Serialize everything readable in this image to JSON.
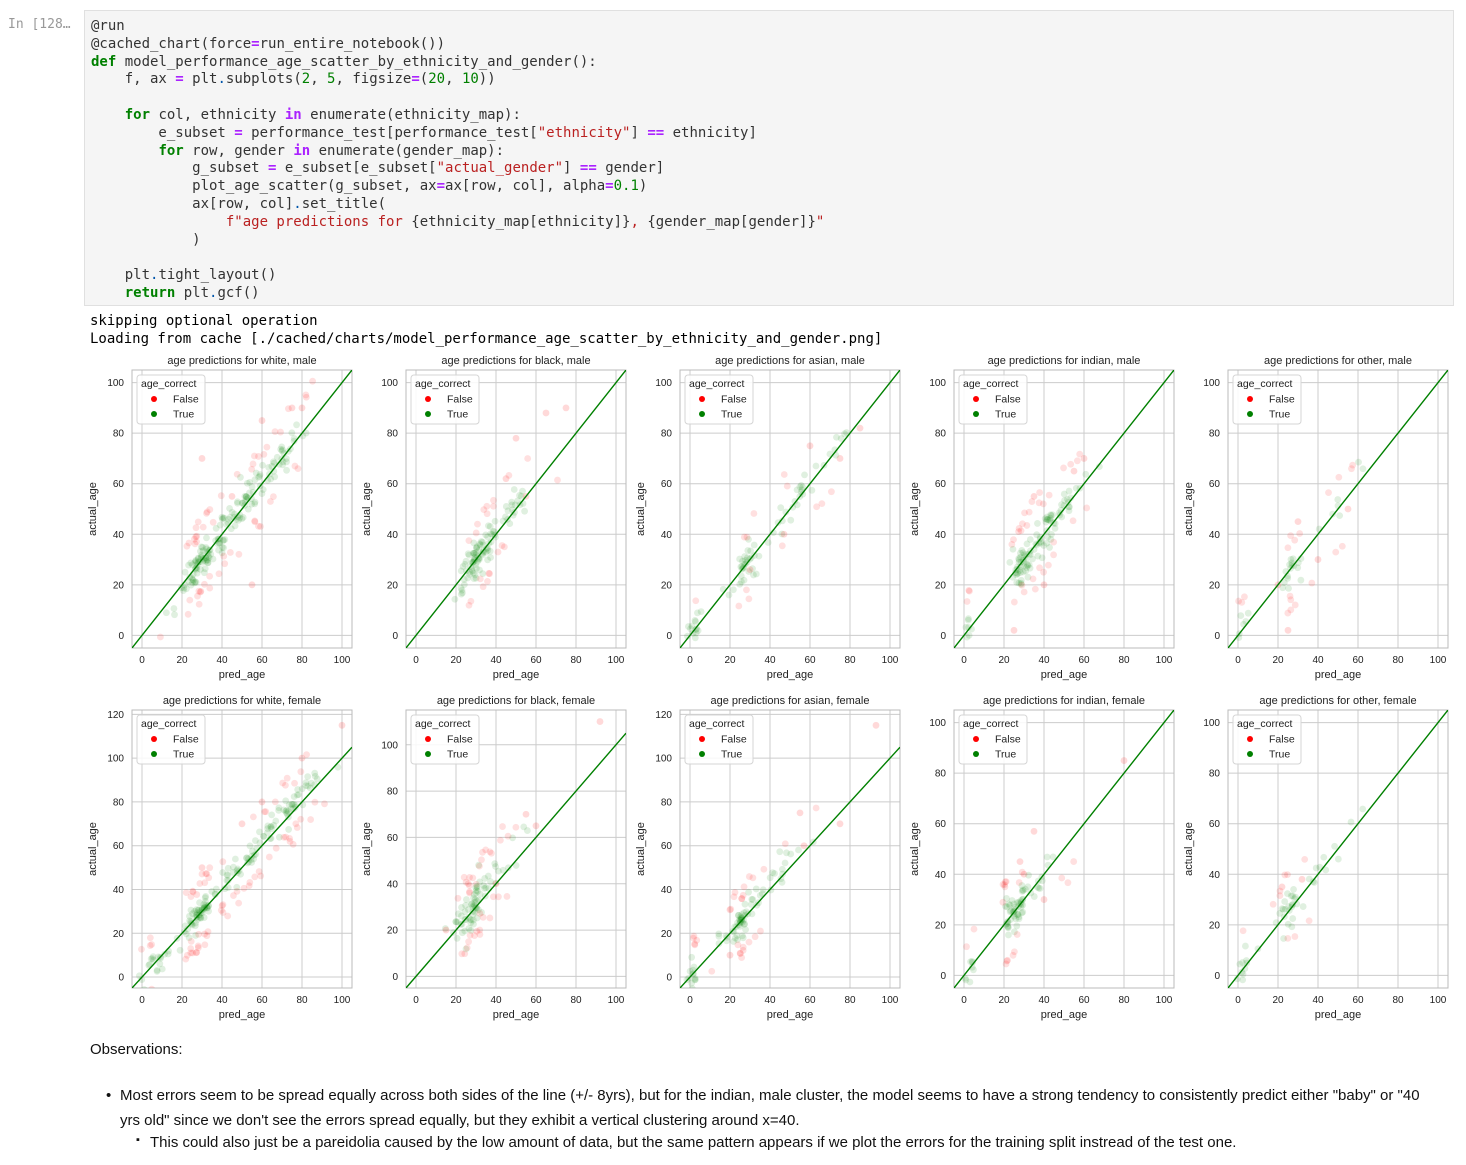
{
  "cell": {
    "prompt": "In [128…",
    "code_lines": [
      [
        [
          "",
          "@run"
        ]
      ],
      [
        [
          "",
          "@cached_chart(force"
        ],
        [
          "op",
          "="
        ],
        [
          "",
          "run_entire_notebook())"
        ]
      ],
      [
        [
          "k",
          "def"
        ],
        [
          "",
          " model_performance_age_scatter_by_ethnicity_and_gender():"
        ]
      ],
      [
        [
          "",
          "    f, ax "
        ],
        [
          "op",
          "="
        ],
        [
          "",
          " plt"
        ],
        [
          "p",
          "."
        ],
        [
          "",
          "subplots("
        ],
        [
          "n",
          "2"
        ],
        [
          "",
          ", "
        ],
        [
          "n",
          "5"
        ],
        [
          "",
          ", figsize"
        ],
        [
          "op",
          "="
        ],
        [
          "",
          "("
        ],
        [
          "n",
          "20"
        ],
        [
          "",
          ", "
        ],
        [
          "n",
          "10"
        ],
        [
          "",
          "))"
        ]
      ],
      [
        [
          "",
          ""
        ]
      ],
      [
        [
          "",
          "    "
        ],
        [
          "k",
          "for"
        ],
        [
          "",
          " col, ethnicity "
        ],
        [
          "op",
          "in"
        ],
        [
          "",
          " enumerate(ethnicity_map):"
        ]
      ],
      [
        [
          "",
          "        e_subset "
        ],
        [
          "op",
          "="
        ],
        [
          "",
          " performance_test[performance_test["
        ],
        [
          "s",
          "\"ethnicity\""
        ],
        [
          "",
          "] "
        ],
        [
          "op",
          "=="
        ],
        [
          "",
          " ethnicity]"
        ]
      ],
      [
        [
          "",
          "        "
        ],
        [
          "k",
          "for"
        ],
        [
          "",
          " row, gender "
        ],
        [
          "op",
          "in"
        ],
        [
          "",
          " enumerate(gender_map):"
        ]
      ],
      [
        [
          "",
          "            g_subset "
        ],
        [
          "op",
          "="
        ],
        [
          "",
          " e_subset[e_subset["
        ],
        [
          "s",
          "\"actual_gender\""
        ],
        [
          "",
          "] "
        ],
        [
          "op",
          "=="
        ],
        [
          "",
          " gender]"
        ]
      ],
      [
        [
          "",
          "            plot_age_scatter(g_subset, ax"
        ],
        [
          "op",
          "="
        ],
        [
          "",
          "ax[row, col], alpha"
        ],
        [
          "op",
          "="
        ],
        [
          "n",
          "0.1"
        ],
        [
          "",
          ")"
        ]
      ],
      [
        [
          "",
          "            ax[row, col]"
        ],
        [
          "p",
          "."
        ],
        [
          "",
          "set_title("
        ]
      ],
      [
        [
          "",
          "                "
        ],
        [
          "s",
          "f\"age predictions for "
        ],
        [
          "",
          "{ethnicity_map[ethnicity]}"
        ],
        [
          "s",
          ", "
        ],
        [
          "",
          "{gender_map[gender]}"
        ],
        [
          "s",
          "\""
        ]
      ],
      [
        [
          "",
          "            )"
        ]
      ],
      [
        [
          "",
          ""
        ]
      ],
      [
        [
          "",
          "    plt"
        ],
        [
          "p",
          "."
        ],
        [
          "",
          "tight_layout()"
        ]
      ],
      [
        [
          "",
          "    "
        ],
        [
          "k",
          "return"
        ],
        [
          "",
          " plt"
        ],
        [
          "p",
          "."
        ],
        [
          "",
          "gcf()"
        ]
      ]
    ]
  },
  "output": {
    "line1": "skipping optional operation",
    "line2": "Loading from cache [./cached/charts/model_performance_age_scatter_by_ethnicity_and_gender.png]"
  },
  "colors": {
    "correct": "#008000",
    "incorrect": "#ff0000",
    "grid": "#cccccc"
  },
  "chart_data": [
    {
      "type": "scatter",
      "title": "age predictions for white, male",
      "xlabel": "pred_age",
      "ylabel": "actual_age",
      "xlim": [
        -5,
        105
      ],
      "ylim": [
        -5,
        105
      ],
      "xticks": [
        0,
        20,
        40,
        60,
        80,
        100
      ],
      "yticks": [
        0,
        20,
        40,
        60,
        80,
        100
      ],
      "legend": {
        "title": "age_correct",
        "entries": [
          "False",
          "True"
        ],
        "placement": "top-left"
      },
      "clusters": [
        {
          "cx": 28,
          "cy": 28,
          "spread": 4,
          "n": 70
        },
        {
          "cx": 45,
          "cy": 45,
          "spread": 14,
          "n": 110
        },
        {
          "cx": 68,
          "cy": 68,
          "spread": 8,
          "n": 40
        }
      ],
      "error_fraction": 0.25,
      "extra_errors": [
        [
          60,
          85
        ],
        [
          75,
          90
        ],
        [
          80,
          90
        ],
        [
          30,
          70
        ],
        [
          55,
          20
        ],
        [
          45,
          55
        ]
      ],
      "diag": [
        [
          -5,
          -5
        ],
        [
          105,
          105
        ]
      ]
    },
    {
      "type": "scatter",
      "title": "age predictions for black, male",
      "xlabel": "pred_age",
      "ylabel": "actual_age",
      "xlim": [
        -5,
        105
      ],
      "ylim": [
        -5,
        105
      ],
      "xticks": [
        0,
        20,
        40,
        60,
        80,
        100
      ],
      "yticks": [
        0,
        20,
        40,
        60,
        80,
        100
      ],
      "legend": {
        "title": "age_correct",
        "entries": [
          "False",
          "True"
        ],
        "placement": "top-left"
      },
      "clusters": [
        {
          "cx": 28,
          "cy": 28,
          "spread": 4,
          "n": 60
        },
        {
          "cx": 38,
          "cy": 40,
          "spread": 10,
          "n": 60
        }
      ],
      "error_fraction": 0.2,
      "extra_errors": [
        [
          75,
          90
        ],
        [
          50,
          78
        ],
        [
          65,
          88
        ],
        [
          55,
          55
        ],
        [
          45,
          62
        ]
      ],
      "diag": [
        [
          -5,
          -5
        ],
        [
          105,
          105
        ]
      ]
    },
    {
      "type": "scatter",
      "title": "age predictions for asian, male",
      "xlabel": "pred_age",
      "ylabel": "actual_age",
      "xlim": [
        -5,
        105
      ],
      "ylim": [
        -5,
        105
      ],
      "xticks": [
        0,
        20,
        40,
        60,
        80,
        100
      ],
      "yticks": [
        0,
        20,
        40,
        60,
        80,
        100
      ],
      "legend": {
        "title": "age_correct",
        "entries": [
          "False",
          "True"
        ],
        "placement": "top-left"
      },
      "clusters": [
        {
          "cx": 2,
          "cy": 2,
          "spread": 1.5,
          "n": 15
        },
        {
          "cx": 28,
          "cy": 28,
          "spread": 4,
          "n": 35
        },
        {
          "cx": 55,
          "cy": 55,
          "spread": 14,
          "n": 40
        }
      ],
      "error_fraction": 0.15,
      "extra_errors": [
        [
          85,
          82
        ],
        [
          60,
          75
        ],
        [
          47,
          40
        ],
        [
          30,
          26
        ],
        [
          75,
          70
        ]
      ],
      "diag": [
        [
          -5,
          -5
        ],
        [
          105,
          105
        ]
      ]
    },
    {
      "type": "scatter",
      "title": "age predictions for indian, male",
      "xlabel": "pred_age",
      "ylabel": "actual_age",
      "xlim": [
        -5,
        105
      ],
      "ylim": [
        -5,
        105
      ],
      "xticks": [
        0,
        20,
        40,
        60,
        80,
        100
      ],
      "yticks": [
        0,
        20,
        40,
        60,
        80,
        100
      ],
      "legend": {
        "title": "age_correct",
        "entries": [
          "False",
          "True"
        ],
        "placement": "top-left"
      },
      "clusters": [
        {
          "cx": 2,
          "cy": 2,
          "spread": 1.5,
          "n": 12
        },
        {
          "cx": 28,
          "cy": 26,
          "spread": 3,
          "n": 40
        },
        {
          "cx": 40,
          "cy": 42,
          "spread": 10,
          "n": 90
        }
      ],
      "error_fraction": 0.28,
      "extra_errors": [
        [
          25,
          2
        ],
        [
          60,
          70
        ],
        [
          55,
          65
        ],
        [
          35,
          55
        ],
        [
          40,
          20
        ]
      ],
      "diag": [
        [
          -5,
          -5
        ],
        [
          105,
          105
        ]
      ]
    },
    {
      "type": "scatter",
      "title": "age predictions for other, male",
      "xlabel": "pred_age",
      "ylabel": "actual_age",
      "xlim": [
        -5,
        105
      ],
      "ylim": [
        -5,
        105
      ],
      "xticks": [
        0,
        20,
        40,
        60,
        80,
        100
      ],
      "yticks": [
        0,
        20,
        40,
        60,
        80,
        100
      ],
      "legend": {
        "title": "age_correct",
        "entries": [
          "False",
          "True"
        ],
        "placement": "top-left"
      },
      "clusters": [
        {
          "cx": 2,
          "cy": 2,
          "spread": 1.5,
          "n": 10
        },
        {
          "cx": 28,
          "cy": 28,
          "spread": 5,
          "n": 25
        },
        {
          "cx": 45,
          "cy": 45,
          "spread": 10,
          "n": 15
        }
      ],
      "error_fraction": 0.25,
      "extra_errors": [
        [
          25,
          2
        ],
        [
          30,
          45
        ],
        [
          55,
          50
        ],
        [
          40,
          30
        ],
        [
          20,
          20
        ]
      ],
      "diag": [
        [
          -5,
          -5
        ],
        [
          105,
          105
        ]
      ]
    },
    {
      "type": "scatter",
      "title": "age predictions for white, female",
      "xlabel": "pred_age",
      "ylabel": "actual_age",
      "xlim": [
        -5,
        105
      ],
      "ylim": [
        -5,
        122
      ],
      "xticks": [
        0,
        20,
        40,
        60,
        80,
        100
      ],
      "yticks": [
        0,
        20,
        40,
        60,
        80,
        100,
        120
      ],
      "legend": {
        "title": "age_correct",
        "entries": [
          "False",
          "True"
        ],
        "placement": "top-left"
      },
      "clusters": [
        {
          "cx": 6,
          "cy": 6,
          "spread": 4,
          "n": 25
        },
        {
          "cx": 28,
          "cy": 28,
          "spread": 4,
          "n": 60
        },
        {
          "cx": 50,
          "cy": 52,
          "spread": 16,
          "n": 110
        },
        {
          "cx": 78,
          "cy": 82,
          "spread": 8,
          "n": 40
        }
      ],
      "error_fraction": 0.25,
      "extra_errors": [
        [
          100,
          115
        ],
        [
          50,
          70
        ],
        [
          30,
          50
        ],
        [
          80,
          100
        ],
        [
          60,
          80
        ]
      ],
      "diag": [
        [
          -5,
          -5
        ],
        [
          105,
          105
        ]
      ]
    },
    {
      "type": "scatter",
      "title": "age predictions for black, female",
      "xlabel": "pred_age",
      "ylabel": "actual_age",
      "xlim": [
        -5,
        105
      ],
      "ylim": [
        -5,
        115
      ],
      "xticks": [
        0,
        20,
        40,
        60,
        80,
        100
      ],
      "yticks": [
        0,
        20,
        40,
        60,
        80,
        100
      ],
      "legend": {
        "title": "age_correct",
        "entries": [
          "False",
          "True"
        ],
        "placement": "top-left"
      },
      "clusters": [
        {
          "cx": 28,
          "cy": 28,
          "spread": 4,
          "n": 60
        },
        {
          "cx": 35,
          "cy": 40,
          "spread": 10,
          "n": 50
        }
      ],
      "error_fraction": 0.3,
      "extra_errors": [
        [
          92,
          110
        ],
        [
          55,
          70
        ],
        [
          60,
          65
        ],
        [
          15,
          20
        ],
        [
          40,
          40
        ]
      ],
      "diag": [
        [
          -5,
          -5
        ],
        [
          105,
          105
        ]
      ]
    },
    {
      "type": "scatter",
      "title": "age predictions for asian, female",
      "xlabel": "pred_age",
      "ylabel": "actual_age",
      "xlim": [
        -5,
        105
      ],
      "ylim": [
        -5,
        122
      ],
      "xticks": [
        0,
        20,
        40,
        60,
        80,
        100
      ],
      "yticks": [
        0,
        20,
        40,
        60,
        80,
        100,
        120
      ],
      "legend": {
        "title": "age_correct",
        "entries": [
          "False",
          "True"
        ],
        "placement": "top-left"
      },
      "clusters": [
        {
          "cx": 2,
          "cy": 2,
          "spread": 1.5,
          "n": 20
        },
        {
          "cx": 26,
          "cy": 26,
          "spread": 3,
          "n": 60
        },
        {
          "cx": 40,
          "cy": 42,
          "spread": 12,
          "n": 30
        }
      ],
      "error_fraction": 0.2,
      "extra_errors": [
        [
          93,
          115
        ],
        [
          55,
          75
        ],
        [
          75,
          70
        ],
        [
          20,
          10
        ],
        [
          57,
          60
        ]
      ],
      "diag": [
        [
          -5,
          -5
        ],
        [
          105,
          105
        ]
      ]
    },
    {
      "type": "scatter",
      "title": "age predictions for indian, female",
      "xlabel": "pred_age",
      "ylabel": "actual_age",
      "xlim": [
        -5,
        105
      ],
      "ylim": [
        -5,
        105
      ],
      "xticks": [
        0,
        20,
        40,
        60,
        80,
        100
      ],
      "yticks": [
        0,
        20,
        40,
        60,
        80,
        100
      ],
      "legend": {
        "title": "age_correct",
        "entries": [
          "False",
          "True"
        ],
        "placement": "top-left"
      },
      "clusters": [
        {
          "cx": 3,
          "cy": 2,
          "spread": 1.5,
          "n": 10
        },
        {
          "cx": 25,
          "cy": 25,
          "spread": 3,
          "n": 60
        },
        {
          "cx": 40,
          "cy": 40,
          "spread": 10,
          "n": 20
        }
      ],
      "error_fraction": 0.22,
      "extra_errors": [
        [
          28,
          45
        ],
        [
          35,
          57
        ],
        [
          40,
          30
        ],
        [
          80,
          85
        ],
        [
          30,
          40
        ]
      ],
      "diag": [
        [
          -5,
          -5
        ],
        [
          105,
          105
        ]
      ]
    },
    {
      "type": "scatter",
      "title": "age predictions for other, female",
      "xlabel": "pred_age",
      "ylabel": "actual_age",
      "xlim": [
        -5,
        105
      ],
      "ylim": [
        -5,
        105
      ],
      "xticks": [
        0,
        20,
        40,
        60,
        80,
        100
      ],
      "yticks": [
        0,
        20,
        40,
        60,
        80,
        100
      ],
      "legend": {
        "title": "age_correct",
        "entries": [
          "False",
          "True"
        ],
        "placement": "top-left"
      },
      "clusters": [
        {
          "cx": 2,
          "cy": 2,
          "spread": 1.5,
          "n": 12
        },
        {
          "cx": 25,
          "cy": 25,
          "spread": 5,
          "n": 35
        },
        {
          "cx": 40,
          "cy": 42,
          "spread": 8,
          "n": 10
        }
      ],
      "error_fraction": 0.1,
      "extra_errors": [
        [
          22,
          35
        ],
        [
          32,
          38
        ]
      ],
      "diag": [
        [
          -5,
          -5
        ],
        [
          105,
          105
        ]
      ]
    }
  ],
  "markdown": {
    "observations": "Observations:",
    "bullet1": "Most errors seem to be spread equally across both sides of the line (+/- 8yrs), but for the indian, male cluster, the model seems to have a strong tendency to consistently predict either \"baby\" or \"40 yrs old\" since we don't see the errors spread equally, but they exhibit a vertical clustering around x=40.",
    "bullet2": "This could also just be a pareidolia caused by the low amount of data, but the same pattern appears if we plot the errors for the training split instread of the test one."
  }
}
